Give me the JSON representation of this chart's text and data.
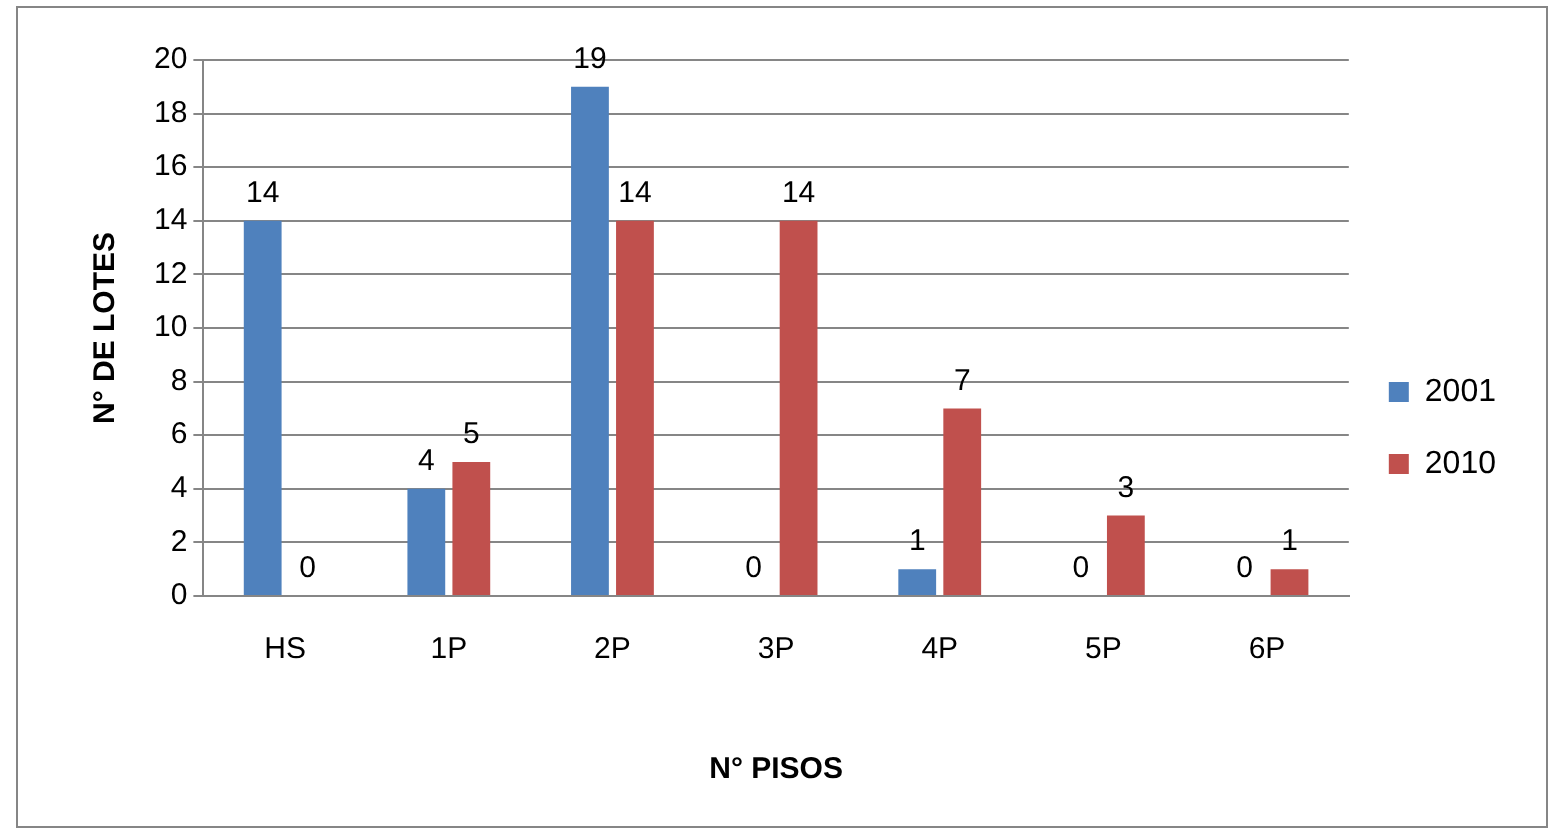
{
  "chart_data": {
    "type": "bar",
    "xlabel": "N° PISOS",
    "ylabel": "N° DE LOTES",
    "categories": [
      "HS",
      "1P",
      "2P",
      "3P",
      "4P",
      "5P",
      "6P"
    ],
    "series": [
      {
        "name": "2001",
        "color": "#4f81bd",
        "values": [
          14,
          4,
          19,
          0,
          1,
          0,
          0
        ]
      },
      {
        "name": "2010",
        "color": "#c0504d",
        "values": [
          0,
          5,
          14,
          14,
          7,
          3,
          1
        ]
      }
    ],
    "ylim": [
      0,
      20
    ],
    "yticks": [
      0,
      2,
      4,
      6,
      8,
      10,
      12,
      14,
      16,
      18,
      20
    ],
    "grid": "y",
    "legend": "right",
    "data_labels": true
  }
}
